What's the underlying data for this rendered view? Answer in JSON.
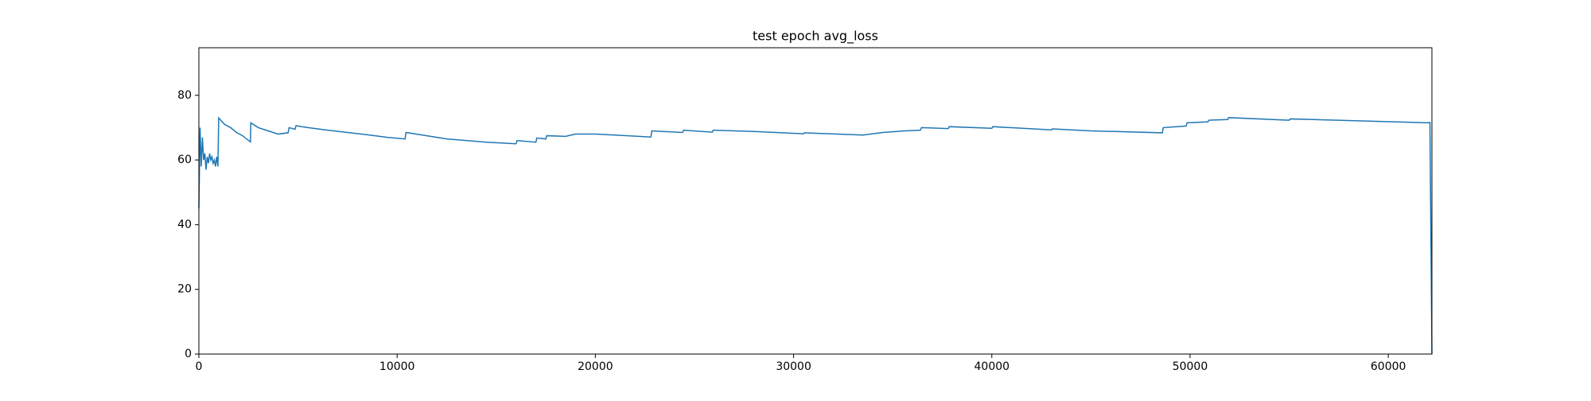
{
  "chart_data": {
    "type": "line",
    "title": "test epoch avg_loss",
    "title_color": "#ff0000",
    "x": [
      0,
      60,
      120,
      180,
      240,
      300,
      360,
      420,
      480,
      540,
      600,
      660,
      720,
      780,
      840,
      900,
      960,
      1000,
      1300,
      1600,
      1900,
      2200,
      2600,
      2620,
      3000,
      3500,
      4000,
      4500,
      4550,
      4850,
      4900,
      5500,
      6500,
      7500,
      8500,
      9500,
      10400,
      10450,
      11500,
      12500,
      13500,
      14500,
      16000,
      16050,
      17000,
      17050,
      17500,
      17550,
      18500,
      19000,
      20000,
      21000,
      22800,
      22850,
      24400,
      24450,
      25900,
      25950,
      28000,
      30500,
      30550,
      33500,
      34500,
      35600,
      36400,
      36450,
      37800,
      37850,
      40000,
      40050,
      43000,
      43050,
      45000,
      48600,
      48650,
      49800,
      49850,
      50900,
      50950,
      51900,
      51950,
      55000,
      55050,
      62000,
      62100,
      62200
    ],
    "series": [
      {
        "name": "avg_loss",
        "color": "#1f77b4",
        "values": [
          45,
          70,
          58,
          67,
          60,
          62,
          57,
          61,
          59,
          62,
          60,
          61,
          59,
          60,
          58,
          61,
          58,
          73,
          71,
          70,
          68.5,
          67.5,
          65.6,
          71.5,
          70,
          69,
          68,
          68.4,
          70,
          69.5,
          70.6,
          70,
          69.2,
          68.5,
          67.8,
          67,
          66.5,
          68.5,
          67.5,
          66.5,
          66,
          65.5,
          65,
          66,
          65.5,
          66.8,
          66.5,
          67.5,
          67.3,
          68,
          68,
          67.7,
          67.1,
          69,
          68.5,
          69.2,
          68.6,
          69.2,
          68.8,
          68.1,
          68.4,
          67.7,
          68.5,
          69,
          69.2,
          70,
          69.7,
          70.3,
          69.8,
          70.3,
          69.3,
          69.6,
          69,
          68.4,
          70,
          70.5,
          71.5,
          71.8,
          72.3,
          72.5,
          73.1,
          72.3,
          72.7,
          71.5,
          71.6,
          0
        ]
      }
    ],
    "xlim": [
      0,
      62200
    ],
    "ylim": [
      0,
      94.7
    ],
    "xticks": [
      0,
      10000,
      20000,
      30000,
      40000,
      50000,
      60000
    ],
    "yticks": [
      0,
      20,
      40,
      60,
      80
    ]
  }
}
